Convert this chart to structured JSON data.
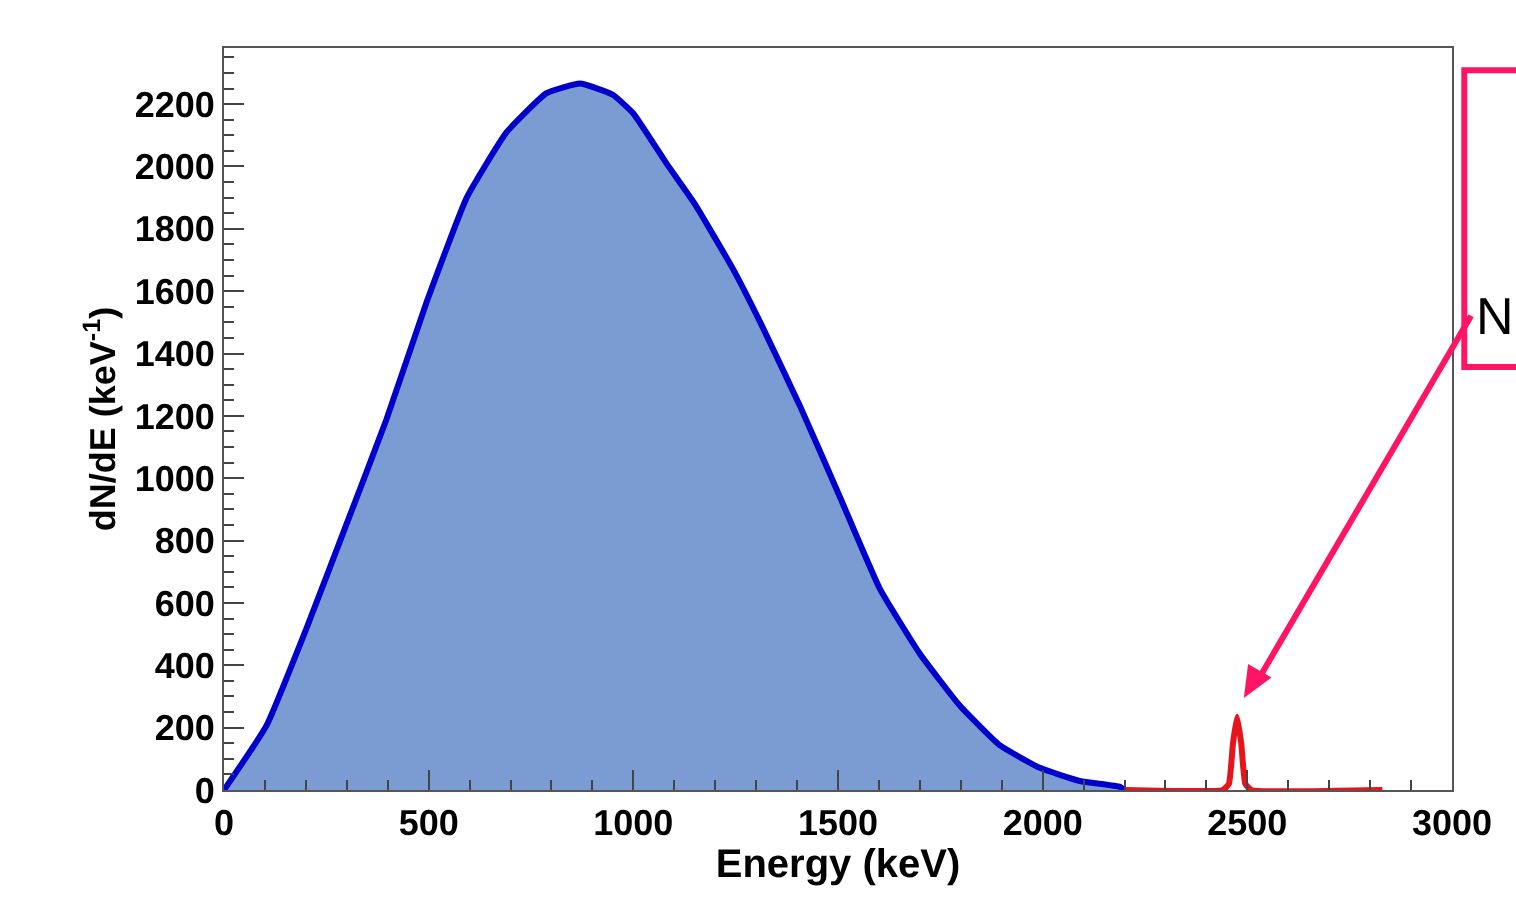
{
  "chart_data": {
    "type": "area",
    "xlabel": "Energy (keV)",
    "ylabel": "dN/dE (keV$^{-1}$)",
    "series": [
      {
        "color": "#7b9bd3",
        "x": [
          0,
          104,
          202,
          300,
          397,
          495,
          593,
          690,
          788,
          870,
          950,
          1000,
          1081,
          1150,
          1244,
          1309,
          1407,
          1505,
          1602,
          1700,
          1798,
          1895,
          1993,
          2091,
          2189,
          2200
        ],
        "values": [
          0,
          207,
          520,
          855,
          1189,
          1565,
          1900,
          2109,
          2235,
          2266,
          2230,
          2170,
          2010,
          1880,
          1670,
          1503,
          1232,
          939,
          646,
          437,
          270,
          144,
          71,
          29,
          10,
          0
        ]
      },
      {
        "type": "line",
        "color": "#e8141c",
        "x": [
          2200,
          2440,
          2455,
          2465,
          2475,
          2485,
          2495,
          2510,
          2830
        ],
        "values": [
          0,
          0,
          20,
          150,
          235,
          150,
          20,
          0,
          0
        ]
      }
    ],
    "annotations": [
      {
        "text": "N",
        "x": 2475,
        "y": 238
      }
    ],
    "xlim": [
      0,
      3000
    ],
    "xticks": [
      0,
      500,
      1000,
      1500,
      2000,
      2500,
      3000
    ],
    "ylim": [
      0,
      2380
    ],
    "yticks": [
      0,
      200,
      400,
      600,
      800,
      1000,
      1200,
      1400,
      1600,
      1800,
      2000,
      2200
    ]
  }
}
